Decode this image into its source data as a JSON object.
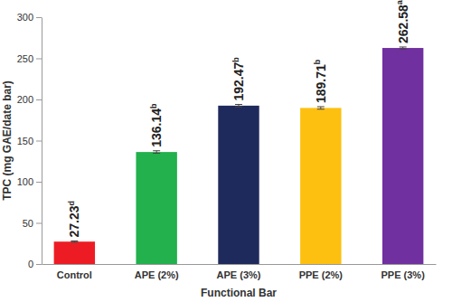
{
  "chart_data": {
    "type": "bar",
    "x_label": "Functional Bar",
    "y_label": "TPC (mg GAE/date bar)",
    "categories": [
      "Control",
      "APE (2%)",
      "APE (3%)",
      "PPE (2%)",
      "PPE (3%)"
    ],
    "values": [
      27.23,
      136.14,
      192.47,
      189.71,
      262.58
    ],
    "value_labels": [
      "27.23d",
      "136.14b",
      "192.47b",
      "189.71b",
      "262.58a"
    ],
    "errors": [
      0.8,
      1.5,
      1.5,
      1.5,
      1.2
    ],
    "colors": [
      "#ed1c24",
      "#22b14c",
      "#1f2a5c",
      "#fdc010",
      "#7030a0"
    ],
    "ylim": [
      0,
      300
    ],
    "yticks": [
      0,
      50,
      100,
      150,
      200,
      250,
      300
    ],
    "grid": false,
    "data_labels": true
  }
}
